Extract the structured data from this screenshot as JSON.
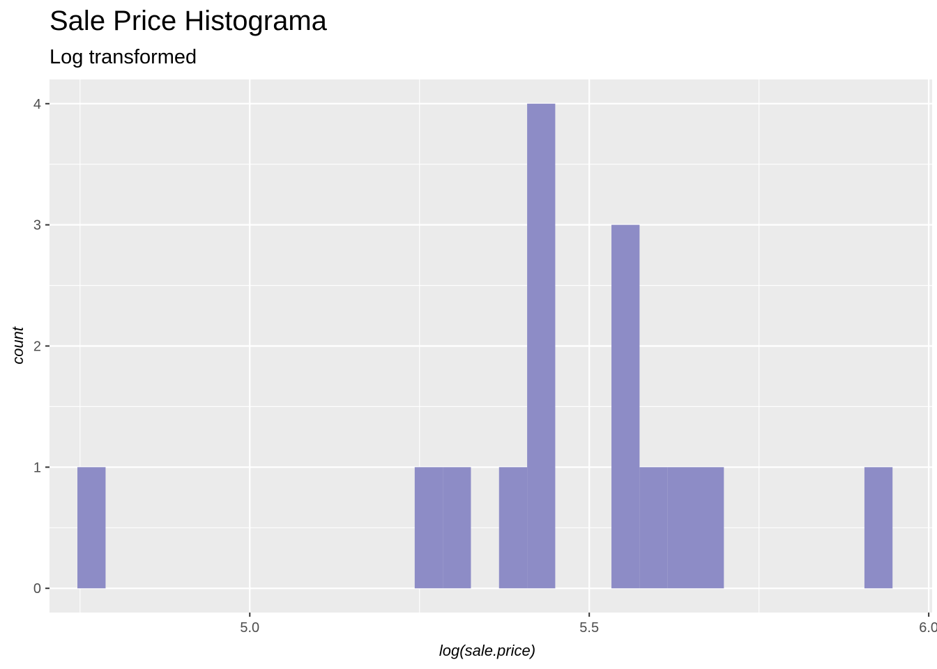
{
  "chart_data": {
    "type": "bar",
    "title": "Sale Price Histograma",
    "subtitle": "Log transformed",
    "xlabel": "log(sale.price)",
    "ylabel": "count",
    "xlim": [
      4.705,
      6.005
    ],
    "ylim": [
      -0.2,
      4.2
    ],
    "x_ticks": [
      "5.0",
      "5.5",
      "6.0"
    ],
    "y_ticks": [
      "0",
      "1",
      "2",
      "3",
      "4"
    ],
    "bar_color": "#8d8cc6",
    "panel_background": "#ebebeb",
    "grid": true,
    "bins": [
      {
        "x0": 4.7461,
        "x1": 4.7876,
        "count": 1
      },
      {
        "x0": 5.2429,
        "x1": 5.2843,
        "count": 1
      },
      {
        "x0": 5.2843,
        "x1": 5.3257,
        "count": 1
      },
      {
        "x0": 5.3671,
        "x1": 5.4085,
        "count": 1
      },
      {
        "x0": 5.4085,
        "x1": 5.4499,
        "count": 4
      },
      {
        "x0": 5.5327,
        "x1": 5.5741,
        "count": 3
      },
      {
        "x0": 5.5741,
        "x1": 5.6155,
        "count": 1
      },
      {
        "x0": 5.6155,
        "x1": 5.6569,
        "count": 1
      },
      {
        "x0": 5.6569,
        "x1": 5.6983,
        "count": 1
      },
      {
        "x0": 5.9053,
        "x1": 5.9467,
        "count": 1
      }
    ]
  }
}
